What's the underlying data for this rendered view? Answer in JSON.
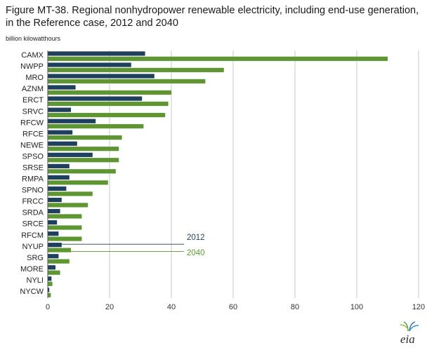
{
  "figure": {
    "title": "Figure MT-38. Regional nonhydropower renewable electricity, including end-use generation, in the Reference case, 2012 and 2040",
    "unit_label": "billion kilowatthours",
    "logo_text": "eia"
  },
  "chart_data": {
    "type": "bar",
    "orientation": "horizontal",
    "categories": [
      "CAMX",
      "NWPP",
      "MRO",
      "AZNM",
      "ERCT",
      "SRVC",
      "RFCW",
      "RFCE",
      "NEWE",
      "SPSO",
      "SRSE",
      "RMPA",
      "SPNO",
      "FRCC",
      "SRDA",
      "SRCE",
      "RFCM",
      "NYUP",
      "SRG",
      "MORE",
      "NYLI",
      "NYCW"
    ],
    "series": [
      {
        "name": "2012",
        "color": "#1f3f5c",
        "values": [
          31.5,
          27,
          34.5,
          9,
          30.5,
          7.5,
          15.5,
          8,
          9.5,
          14.5,
          7,
          7,
          6,
          4.5,
          4,
          3,
          3.5,
          4.5,
          3.5,
          2.5,
          1.2,
          0.5
        ]
      },
      {
        "name": "2040",
        "color": "#5e9732",
        "values": [
          110,
          57,
          51,
          40,
          39,
          38,
          31,
          24,
          23,
          23,
          22,
          19.5,
          14.5,
          13,
          11,
          11,
          11,
          7.5,
          7,
          4,
          1.5,
          1
        ]
      }
    ],
    "xlim": [
      0,
      120
    ],
    "xticks": [
      0,
      20,
      40,
      60,
      80,
      100,
      120
    ],
    "grid": true,
    "legend_placement": "inline-right",
    "xlabel": "",
    "ylabel": ""
  }
}
